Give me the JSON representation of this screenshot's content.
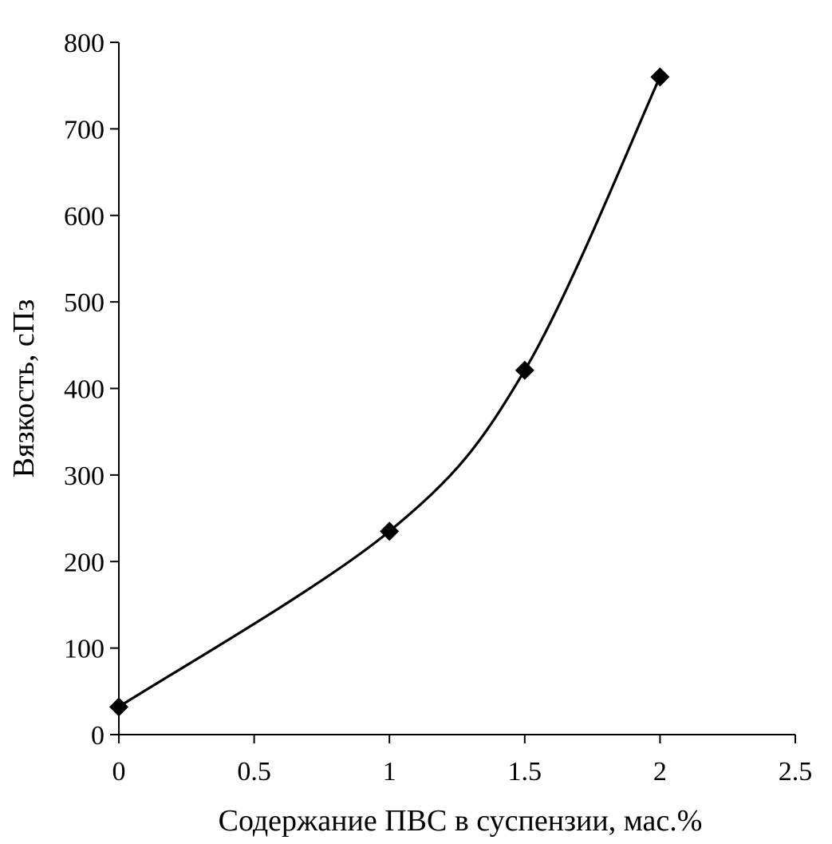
{
  "chart_data": {
    "type": "line",
    "xlabel": "Содержание ПВС в суспензии, мас.%",
    "ylabel": "Вязкость, сПз",
    "xlim": [
      0,
      2.5
    ],
    "ylim": [
      0,
      800
    ],
    "x_ticks": [
      "0",
      "0.5",
      "1",
      "1.5",
      "2",
      "2.5"
    ],
    "y_ticks": [
      "0",
      "100",
      "200",
      "300",
      "400",
      "500",
      "600",
      "700",
      "800"
    ],
    "grid": false,
    "legend": "none",
    "smooth": true,
    "marker": "diamond",
    "color": "#000000",
    "series": [
      {
        "x": [
          0,
          1,
          1.5,
          2
        ],
        "y": [
          32,
          235,
          421,
          760
        ]
      }
    ]
  }
}
